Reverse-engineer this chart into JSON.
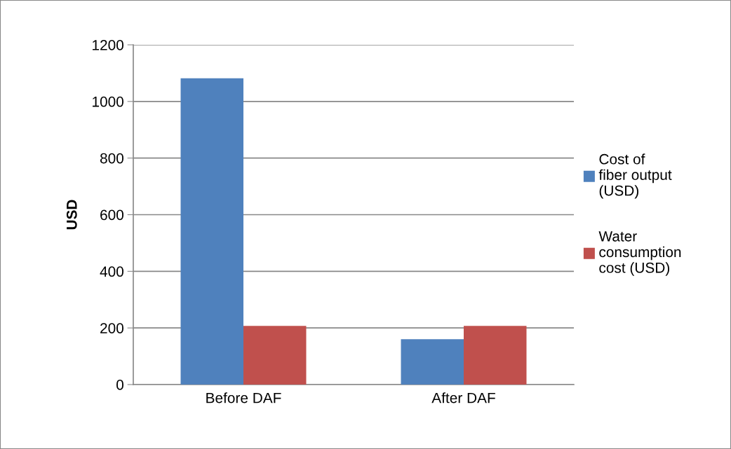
{
  "chart_data": {
    "type": "bar",
    "ylabel": "USD",
    "categories": [
      "Before DAF",
      "After DAF"
    ],
    "series": [
      {
        "name": "Cost of fiber output (USD)",
        "color": "#4f81bd",
        "values": [
          1082,
          160
        ]
      },
      {
        "name": "Water consumption cost (USD)",
        "color": "#c0504d",
        "values": [
          207,
          207
        ]
      }
    ],
    "ylim": [
      0,
      1200
    ],
    "yticks": [
      0,
      200,
      400,
      600,
      800,
      1000,
      1200
    ],
    "grid": "y",
    "legend": "right"
  }
}
